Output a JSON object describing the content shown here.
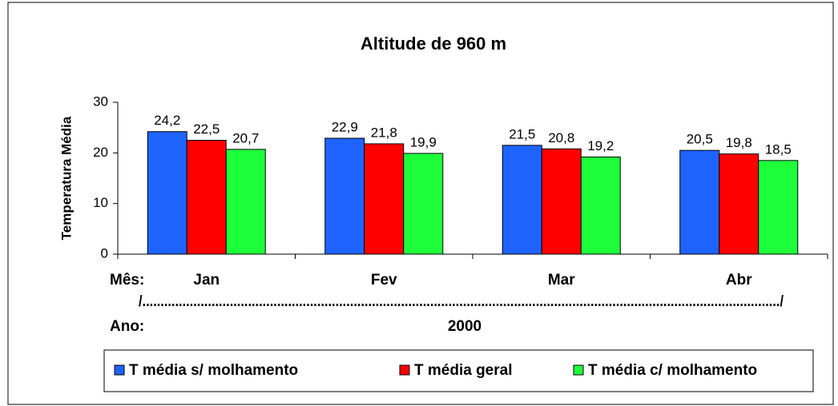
{
  "chart_data": {
    "type": "bar",
    "title": "Altitude de 960 m",
    "y_label": "Temperatura Média",
    "categories": [
      "Jan",
      "Fev",
      "Mar",
      "Abr"
    ],
    "series": [
      {
        "name": "T média s/ molhamento",
        "color": "#1f63ff",
        "values": [
          24.2,
          22.9,
          21.5,
          20.5
        ],
        "value_labels": [
          "24,2",
          "22,9",
          "21,5",
          "20,5"
        ]
      },
      {
        "name": "T média geral",
        "color": "#ff0000",
        "values": [
          22.5,
          21.8,
          20.8,
          19.8
        ],
        "value_labels": [
          "22,5",
          "21,8",
          "20,8",
          "19,8"
        ]
      },
      {
        "name": "T média c/ molhamento",
        "color": "#1eff3c",
        "values": [
          20.7,
          19.9,
          19.2,
          18.5
        ],
        "value_labels": [
          "20,7",
          "19,9",
          "19,2",
          "18,5"
        ]
      }
    ],
    "ylim": [
      0,
      30
    ],
    "yticks": [
      0,
      10,
      20,
      30
    ],
    "grid": false,
    "legend": "bottom",
    "annotations": [
      "Mês:",
      "/.............................................................................................................................................................................../",
      "Ano:",
      "2000"
    ]
  }
}
